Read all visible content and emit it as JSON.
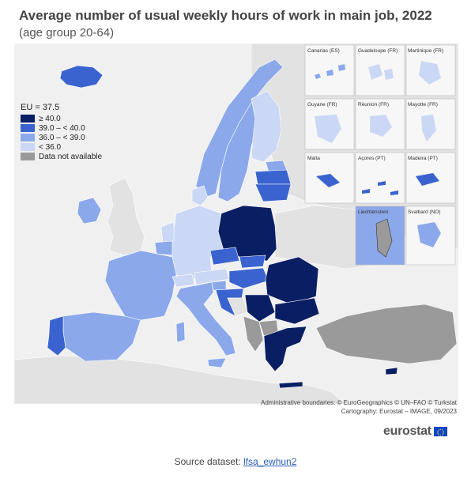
{
  "title": "Average number of usual weekly hours of work in main job, 2022",
  "subtitle": "(age group 20-64)",
  "legend": {
    "average": "EU = 37.5",
    "classes": [
      {
        "label": "≥ 40.0",
        "color": "#0a1f63"
      },
      {
        "label": "39.0 – < 40.0",
        "color": "#3a63cf"
      },
      {
        "label": "36.0 – < 39.0",
        "color": "#8ba8ea"
      },
      {
        "label": "< 36.0",
        "color": "#cbd8f5"
      },
      {
        "label": "Data not available",
        "color": "#9a9a9a"
      }
    ]
  },
  "insets": [
    "Canarias (ES)",
    "Guadeloupe (FR)",
    "Martinique (FR)",
    "Guyane (FR)",
    "Réunion (FR)",
    "Mayotte (FR)",
    "Malta",
    "Açores (PT)",
    "Madeira (PT)",
    "Liechtenstein",
    "Svalbard (NO)"
  ],
  "credits": {
    "line1": "Administrative boundaries: © EuroGeographics © UN–FAO © Turkstat",
    "line2": "Cartography: Eurostat – IMAGE, 09/2023"
  },
  "brand": "eurostat",
  "source": {
    "prefix": "Source dataset: ",
    "link": "lfsa_ewhun2"
  },
  "colors": {
    "ge40": "#0a1f63",
    "c39_40": "#3a63cf",
    "c36_39": "#8ba8ea",
    "lt36": "#cbd8f5",
    "na": "#9a9a9a",
    "non_eu": "#e2e2e2",
    "sea": "#f0f0f0"
  }
}
